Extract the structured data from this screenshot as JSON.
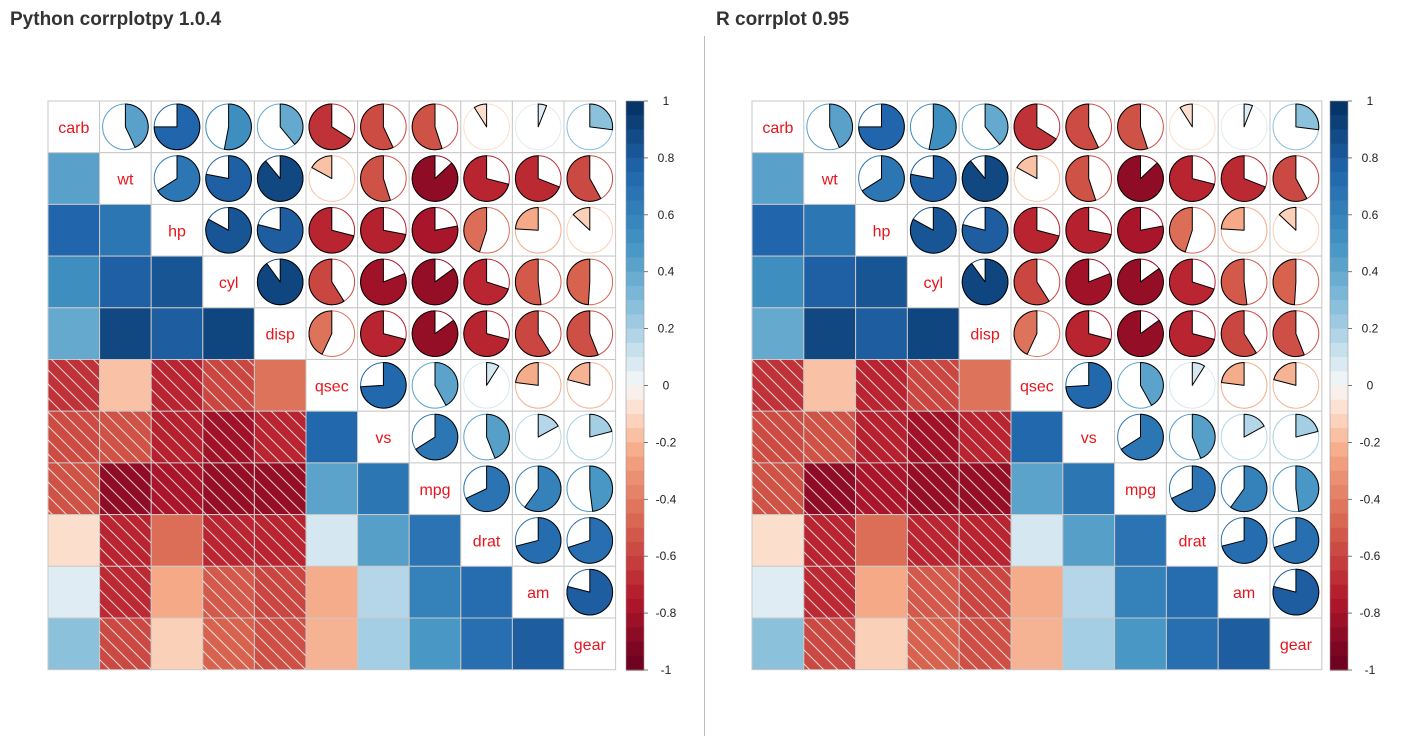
{
  "panels": [
    {
      "title": "Python corrplotpy 1.0.4"
    },
    {
      "title": "R corrplot 0.95"
    }
  ],
  "chart_data": [
    {
      "type": "heatmap",
      "title": "Python corrplotpy 1.0.4",
      "variables": [
        "carb",
        "wt",
        "hp",
        "cyl",
        "disp",
        "qsec",
        "vs",
        "mpg",
        "drat",
        "am",
        "gear"
      ],
      "upper_method": "pie",
      "lower_method": "color",
      "significance_marking": "diagonal hatch",
      "diag_label_color": "#e8141c",
      "colorbar": {
        "ticks": [
          "1",
          "0.8",
          "0.6",
          "0.4",
          "0.2",
          "0",
          "-0.2",
          "-0.4",
          "-0.6",
          "-0.8",
          "-1"
        ],
        "range": [
          -1,
          1
        ]
      },
      "colors": {
        "negative_end": "#67001f",
        "zero": "#f7f7f7",
        "positive_end": "#053061"
      },
      "matrix": [
        [
          1,
          0.43,
          0.75,
          0.53,
          0.39,
          -0.66,
          -0.57,
          -0.55,
          -0.09,
          0.06,
          0.27
        ],
        [
          0.43,
          1,
          0.66,
          0.78,
          0.89,
          -0.17,
          -0.55,
          -0.87,
          -0.71,
          -0.69,
          -0.58
        ],
        [
          0.75,
          0.66,
          1,
          0.83,
          0.79,
          -0.71,
          -0.72,
          -0.78,
          -0.45,
          -0.24,
          -0.13
        ],
        [
          0.53,
          0.78,
          0.83,
          1,
          0.9,
          -0.59,
          -0.81,
          -0.85,
          -0.7,
          -0.52,
          -0.49
        ],
        [
          0.39,
          0.89,
          0.79,
          0.9,
          1,
          -0.43,
          -0.71,
          -0.85,
          -0.71,
          -0.59,
          -0.56
        ],
        [
          -0.66,
          -0.17,
          -0.71,
          -0.59,
          -0.43,
          1,
          0.74,
          0.42,
          0.09,
          -0.23,
          -0.21
        ],
        [
          -0.57,
          -0.55,
          -0.72,
          -0.81,
          -0.71,
          0.74,
          1,
          0.66,
          0.44,
          0.17,
          0.21
        ],
        [
          -0.55,
          -0.87,
          -0.78,
          -0.85,
          -0.85,
          0.42,
          0.66,
          1,
          0.68,
          0.6,
          0.48
        ],
        [
          -0.09,
          -0.71,
          -0.45,
          -0.7,
          -0.71,
          0.09,
          0.44,
          0.68,
          1,
          0.71,
          0.7
        ],
        [
          0.06,
          -0.69,
          -0.24,
          -0.52,
          -0.59,
          -0.23,
          0.17,
          0.6,
          0.71,
          1,
          0.79
        ],
        [
          0.27,
          -0.58,
          -0.13,
          -0.49,
          -0.56,
          -0.21,
          0.21,
          0.48,
          0.7,
          0.79,
          1
        ]
      ]
    },
    {
      "type": "heatmap",
      "title": "R corrplot 0.95",
      "variables": [
        "carb",
        "wt",
        "hp",
        "cyl",
        "disp",
        "qsec",
        "vs",
        "mpg",
        "drat",
        "am",
        "gear"
      ],
      "upper_method": "pie",
      "lower_method": "color",
      "significance_marking": "diagonal hatch",
      "diag_label_color": "#e8141c",
      "colorbar": {
        "ticks": [
          "1",
          "0.8",
          "0.6",
          "0.4",
          "0.2",
          "0",
          "-0.2",
          "-0.4",
          "-0.6",
          "-0.8",
          "-1"
        ],
        "range": [
          -1,
          1
        ]
      },
      "colors": {
        "negative_end": "#67001f",
        "zero": "#f7f7f7",
        "positive_end": "#053061"
      },
      "matrix": [
        [
          1,
          0.43,
          0.75,
          0.53,
          0.39,
          -0.66,
          -0.57,
          -0.55,
          -0.09,
          0.06,
          0.27
        ],
        [
          0.43,
          1,
          0.66,
          0.78,
          0.89,
          -0.17,
          -0.55,
          -0.87,
          -0.71,
          -0.69,
          -0.58
        ],
        [
          0.75,
          0.66,
          1,
          0.83,
          0.79,
          -0.71,
          -0.72,
          -0.78,
          -0.45,
          -0.24,
          -0.13
        ],
        [
          0.53,
          0.78,
          0.83,
          1,
          0.9,
          -0.59,
          -0.81,
          -0.85,
          -0.7,
          -0.52,
          -0.49
        ],
        [
          0.39,
          0.89,
          0.79,
          0.9,
          1,
          -0.43,
          -0.71,
          -0.85,
          -0.71,
          -0.59,
          -0.56
        ],
        [
          -0.66,
          -0.17,
          -0.71,
          -0.59,
          -0.43,
          1,
          0.74,
          0.42,
          0.09,
          -0.23,
          -0.21
        ],
        [
          -0.57,
          -0.55,
          -0.72,
          -0.81,
          -0.71,
          0.74,
          1,
          0.66,
          0.44,
          0.17,
          0.21
        ],
        [
          -0.55,
          -0.87,
          -0.78,
          -0.85,
          -0.85,
          0.42,
          0.66,
          1,
          0.68,
          0.6,
          0.48
        ],
        [
          -0.09,
          -0.71,
          -0.45,
          -0.7,
          -0.71,
          0.09,
          0.44,
          0.68,
          1,
          0.71,
          0.7
        ],
        [
          0.06,
          -0.69,
          -0.24,
          -0.52,
          -0.59,
          -0.23,
          0.17,
          0.6,
          0.71,
          1,
          0.79
        ],
        [
          0.27,
          -0.58,
          -0.13,
          -0.49,
          -0.56,
          -0.21,
          0.21,
          0.48,
          0.7,
          0.79,
          1
        ]
      ]
    }
  ]
}
